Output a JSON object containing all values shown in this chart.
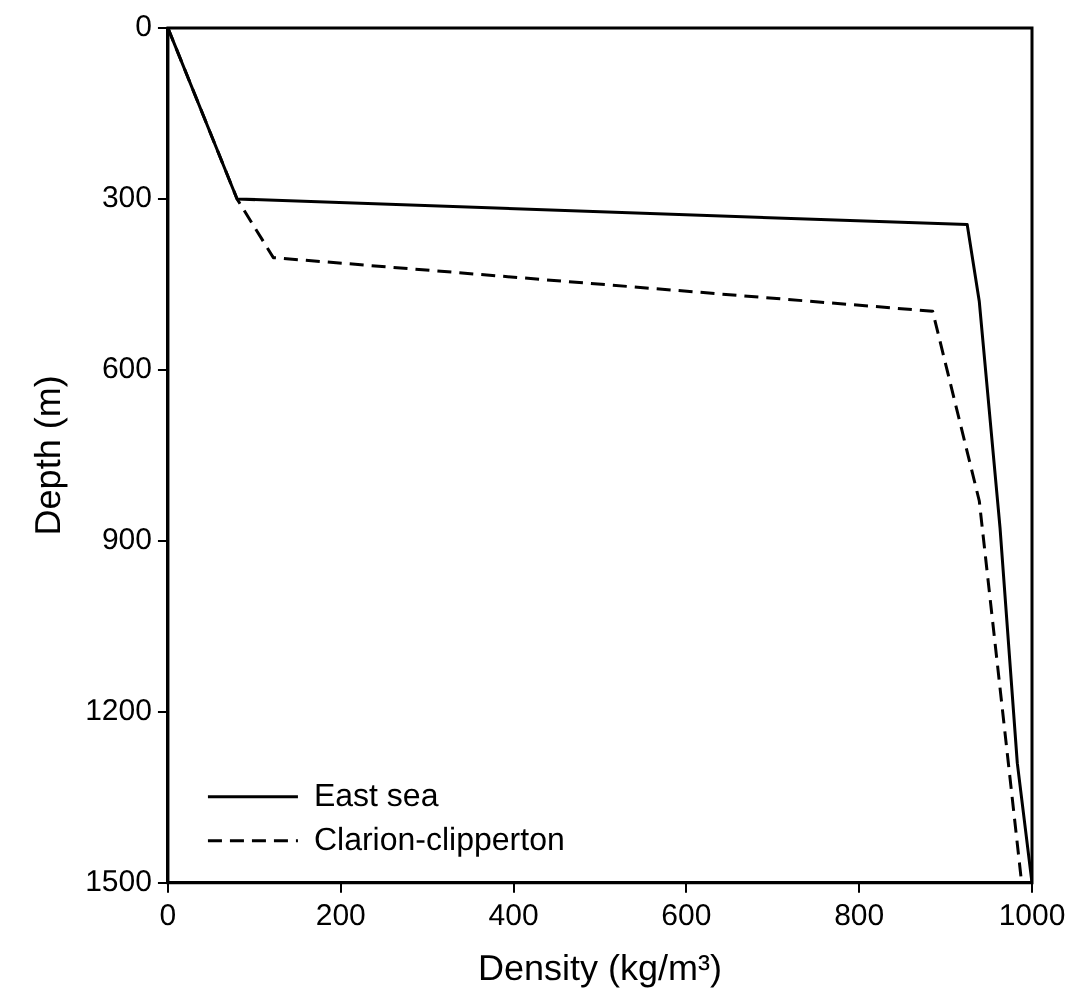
{
  "chart_data": {
    "type": "line",
    "xlabel": "Density (kg/m³)",
    "ylabel": "Depth (m)",
    "xlim": [
      0,
      1000
    ],
    "xticks": [
      0,
      200,
      400,
      600,
      800,
      1000
    ],
    "ylim": [
      1500,
      0
    ],
    "yticks": [
      0,
      300,
      600,
      900,
      1200,
      1500
    ],
    "grid": false,
    "legend": "bottom left",
    "marker": "none",
    "series": [
      {
        "name": "East sea",
        "color": "#000000",
        "line_style": "solid",
        "x": [
          0,
          80,
          925,
          939,
          963,
          983,
          1000
        ],
        "values": [
          0,
          300,
          345,
          480,
          877,
          1290,
          1500
        ]
      },
      {
        "name": "Clarion-clipperton",
        "color": "#000000",
        "line_style": "dashed",
        "x": [
          0,
          80,
          122,
          885,
          939,
          988
        ],
        "values": [
          0,
          300,
          403,
          497,
          830,
          1500
        ]
      }
    ]
  }
}
